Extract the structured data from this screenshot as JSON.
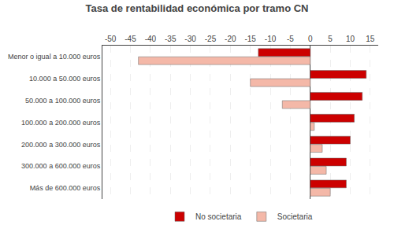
{
  "chart_data": {
    "type": "bar",
    "orientation": "horizontal",
    "title": "Tasa de rentabilidad económica por tramo CN",
    "categories": [
      "Menor o igual a 10.000 euros",
      "10.000 a 50.000 euros",
      "50.000 a 100.000 euros",
      "100.000 a 200.000 euros",
      "200.000 a 300.000 euros",
      "300.000 a 600.000 euros",
      "Más de 600.000 euros"
    ],
    "series": [
      {
        "name": "No societaria",
        "color": "#cc0000",
        "values": [
          -13,
          14,
          13,
          11,
          10,
          9,
          9
        ]
      },
      {
        "name": "Societaria",
        "color": "#f4b8a8",
        "values": [
          -43,
          -15,
          -7,
          1,
          3,
          4,
          5
        ]
      }
    ],
    "xlim": [
      -52,
      17
    ],
    "xticks": [
      -50,
      -45,
      -40,
      -35,
      -30,
      -25,
      -20,
      -15,
      -10,
      -5,
      0,
      5,
      10,
      15
    ],
    "grid": true,
    "legend": "bottom"
  }
}
